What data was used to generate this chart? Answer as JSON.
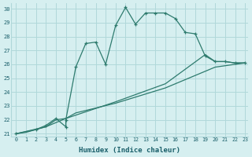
{
  "xlabel": "Humidex (Indice chaleur)",
  "bg_color": "#d6eff0",
  "grid_color": "#b0d8da",
  "line_color": "#2e7b6e",
  "xlim": [
    -0.5,
    23.3
  ],
  "ylim": [
    20.8,
    30.4
  ],
  "xticks": [
    0,
    1,
    2,
    3,
    4,
    5,
    6,
    7,
    8,
    9,
    10,
    11,
    12,
    13,
    14,
    15,
    16,
    17,
    18,
    19,
    20,
    21,
    22,
    23
  ],
  "yticks": [
    21,
    22,
    23,
    24,
    25,
    26,
    27,
    28,
    29,
    30
  ],
  "line1_x": [
    0,
    2,
    3,
    4,
    5,
    5,
    6,
    7,
    8,
    9,
    10,
    11,
    12,
    13,
    14,
    15,
    16,
    17,
    18,
    19,
    20,
    21,
    22,
    23
  ],
  "line1_y": [
    21,
    21.3,
    21.6,
    22.1,
    21.5,
    22.0,
    25.8,
    27.5,
    27.6,
    26.0,
    28.8,
    30.1,
    28.9,
    29.7,
    29.7,
    29.7,
    29.3,
    28.3,
    28.2,
    26.6,
    26.2,
    26.2,
    26.1,
    26.1
  ],
  "line2_x": [
    0,
    1,
    3,
    4,
    5,
    6,
    10,
    15,
    20,
    23
  ],
  "line2_y": [
    21,
    21.1,
    21.5,
    22.0,
    22.1,
    22.5,
    23.2,
    24.3,
    25.8,
    26.1
  ],
  "line3_x": [
    0,
    3,
    5,
    10,
    15,
    19,
    20,
    21,
    22,
    23
  ],
  "line3_y": [
    21,
    21.5,
    22.1,
    23.3,
    24.6,
    26.7,
    26.2,
    26.2,
    26.1,
    26.1
  ]
}
